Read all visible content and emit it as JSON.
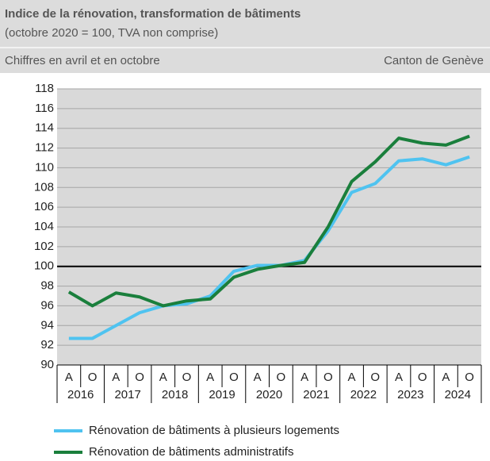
{
  "chart_data": {
    "type": "line",
    "title": "Indice de la rénovation, transformation de bâtiments",
    "subtitle": "(octobre 2020 = 100, TVA non comprise)",
    "note_left": "Chiffres en avril et en octobre",
    "note_right": "Canton de Genève",
    "categories": [
      "A",
      "O",
      "A",
      "O",
      "A",
      "O",
      "A",
      "O",
      "A",
      "O",
      "A",
      "O",
      "A",
      "O",
      "A",
      "O",
      "A",
      "O"
    ],
    "groups": [
      "2016",
      "2017",
      "2018",
      "2019",
      "2020",
      "2021",
      "2022",
      "2023",
      "2024"
    ],
    "series": [
      {
        "name": "Rénovation de bâtiments à plusieurs logements",
        "color": "#4fc3f0",
        "values": [
          92.7,
          92.7,
          94.0,
          95.3,
          96.0,
          96.2,
          97.0,
          99.5,
          100.1,
          100.1,
          100.6,
          103.6,
          107.5,
          108.4,
          110.7,
          110.9,
          110.3,
          111.1
        ]
      },
      {
        "name": "Rénovation de bâtiments administratifs",
        "color": "#1a7f3c",
        "values": [
          97.4,
          96.0,
          97.3,
          96.9,
          96.0,
          96.5,
          96.7,
          98.9,
          99.7,
          100.1,
          100.4,
          104.0,
          108.6,
          110.6,
          113.0,
          112.5,
          112.3,
          113.2
        ]
      }
    ],
    "ylim": [
      90,
      118
    ],
    "yticks": [
      90,
      92,
      94,
      96,
      98,
      100,
      102,
      104,
      106,
      108,
      110,
      112,
      114,
      116,
      118
    ],
    "reference_line": 100,
    "grid": true
  }
}
